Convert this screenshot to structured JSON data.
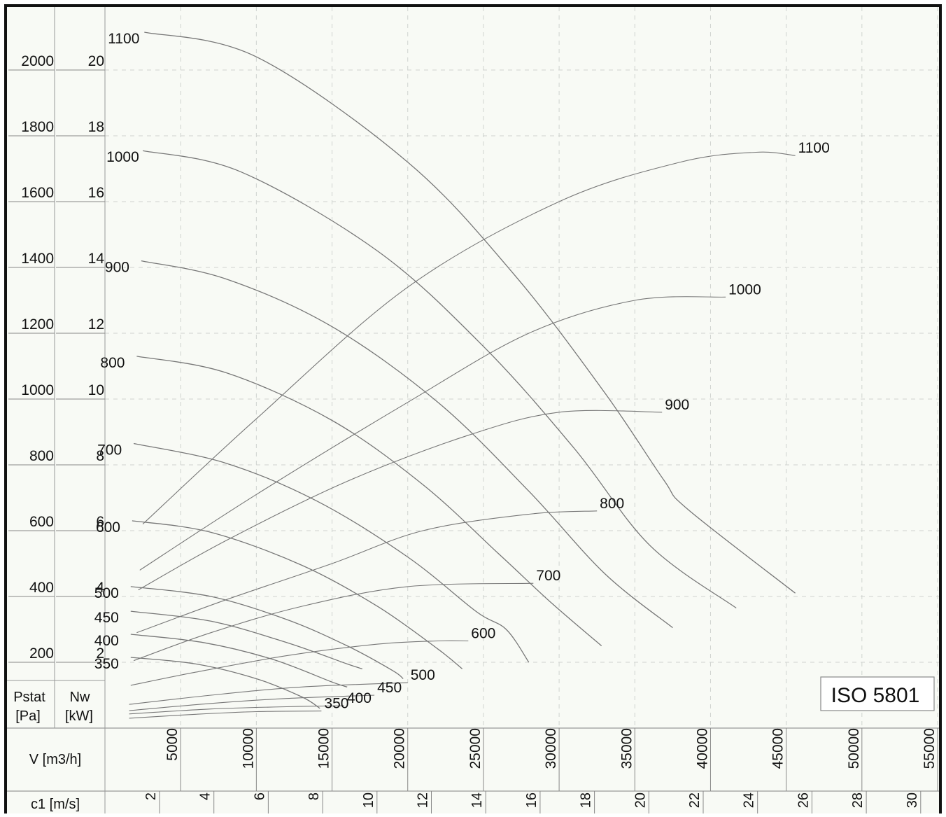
{
  "chart_data": {
    "type": "line",
    "title": "",
    "badge": "ISO 5801",
    "pressure_axis": {
      "label_line1": "Pstat",
      "label_line2": "[Pa]",
      "ticks": [
        200,
        400,
        600,
        800,
        1000,
        1200,
        1400,
        1600,
        1800,
        2000
      ],
      "range": [
        0,
        2100
      ]
    },
    "power_axis": {
      "label_line1": "Nw",
      "label_line2": "[kW]",
      "ticks": [
        2,
        4,
        6,
        8,
        10,
        12,
        14,
        16,
        18,
        20
      ],
      "range": [
        0,
        21
      ]
    },
    "flow_axis": {
      "label": "V [m3/h]",
      "ticks": [
        5000,
        10000,
        15000,
        20000,
        25000,
        30000,
        35000,
        40000,
        45000,
        50000,
        55000
      ],
      "range": [
        0,
        55000
      ]
    },
    "velocity_axis": {
      "label": "c1 [m/s]",
      "ticks": [
        2,
        4,
        6,
        8,
        10,
        12,
        14,
        16,
        18,
        20,
        22,
        24,
        26,
        28,
        30
      ]
    },
    "grid": true,
    "pressure_series": [
      {
        "name": "1100",
        "points": [
          [
            2600,
            2115
          ],
          [
            10000,
            2040
          ],
          [
            20000,
            1720
          ],
          [
            27000,
            1380
          ],
          [
            33000,
            1020
          ],
          [
            36900,
            755
          ],
          [
            38500,
            665
          ],
          [
            45600,
            410
          ]
        ]
      },
      {
        "name": "1000",
        "points": [
          [
            2500,
            1755
          ],
          [
            9000,
            1690
          ],
          [
            18000,
            1450
          ],
          [
            25000,
            1160
          ],
          [
            31000,
            850
          ],
          [
            36000,
            555
          ],
          [
            41700,
            365
          ]
        ]
      },
      {
        "name": "900",
        "points": [
          [
            2400,
            1420
          ],
          [
            8000,
            1365
          ],
          [
            15000,
            1220
          ],
          [
            22000,
            990
          ],
          [
            28000,
            720
          ],
          [
            33000,
            470
          ],
          [
            37500,
            305
          ]
        ]
      },
      {
        "name": "800",
        "points": [
          [
            2100,
            1130
          ],
          [
            8000,
            1080
          ],
          [
            15000,
            935
          ],
          [
            21000,
            740
          ],
          [
            26000,
            530
          ],
          [
            29500,
            380
          ],
          [
            32800,
            250
          ]
        ]
      },
      {
        "name": "700",
        "points": [
          [
            1900,
            865
          ],
          [
            8000,
            805
          ],
          [
            14000,
            690
          ],
          [
            20000,
            520
          ],
          [
            24500,
            355
          ],
          [
            26500,
            300
          ],
          [
            28000,
            200
          ]
        ]
      },
      {
        "name": "600",
        "points": [
          [
            1800,
            630
          ],
          [
            7000,
            595
          ],
          [
            13000,
            495
          ],
          [
            18000,
            370
          ],
          [
            22000,
            240
          ],
          [
            23600,
            180
          ]
        ]
      },
      {
        "name": "500",
        "points": [
          [
            1700,
            430
          ],
          [
            7000,
            400
          ],
          [
            12000,
            330
          ],
          [
            16000,
            250
          ],
          [
            19000,
            175
          ],
          [
            19700,
            150
          ]
        ]
      },
      {
        "name": "450",
        "points": [
          [
            1700,
            355
          ],
          [
            7000,
            325
          ],
          [
            12000,
            260
          ],
          [
            16000,
            195
          ],
          [
            17000,
            180
          ]
        ]
      },
      {
        "name": "400",
        "points": [
          [
            1700,
            285
          ],
          [
            6500,
            260
          ],
          [
            11000,
            210
          ],
          [
            15000,
            140
          ],
          [
            16000,
            125
          ]
        ]
      },
      {
        "name": "350",
        "points": [
          [
            1700,
            215
          ],
          [
            6000,
            195
          ],
          [
            10000,
            150
          ],
          [
            13000,
            95
          ],
          [
            14200,
            60
          ]
        ]
      }
    ],
    "power_series": [
      {
        "name": "1100",
        "points": [
          [
            2500,
            6.2
          ],
          [
            10000,
            9.4
          ],
          [
            20000,
            13.4
          ],
          [
            30000,
            16.0
          ],
          [
            38000,
            17.2
          ],
          [
            43000,
            17.5
          ],
          [
            45600,
            17.4
          ]
        ]
      },
      {
        "name": "1000",
        "points": [
          [
            2300,
            4.8
          ],
          [
            10000,
            7.1
          ],
          [
            20000,
            9.9
          ],
          [
            28000,
            12.0
          ],
          [
            35000,
            13.0
          ],
          [
            41000,
            13.1
          ]
        ]
      },
      {
        "name": "900",
        "points": [
          [
            2200,
            4.2
          ],
          [
            8000,
            5.7
          ],
          [
            16000,
            7.5
          ],
          [
            24000,
            8.9
          ],
          [
            30000,
            9.6
          ],
          [
            36800,
            9.6
          ]
        ]
      },
      {
        "name": "800",
        "points": [
          [
            2100,
            2.9
          ],
          [
            8000,
            3.9
          ],
          [
            15000,
            5.0
          ],
          [
            21000,
            6.0
          ],
          [
            28000,
            6.5
          ],
          [
            32500,
            6.6
          ]
        ]
      },
      {
        "name": "700",
        "points": [
          [
            1900,
            2.05
          ],
          [
            7000,
            2.9
          ],
          [
            13000,
            3.7
          ],
          [
            20000,
            4.3
          ],
          [
            28300,
            4.4
          ]
        ]
      },
      {
        "name": "600",
        "points": [
          [
            1700,
            1.3
          ],
          [
            6000,
            1.7
          ],
          [
            12000,
            2.2
          ],
          [
            18000,
            2.55
          ],
          [
            22000,
            2.65
          ],
          [
            24000,
            2.65
          ]
        ]
      },
      {
        "name": "500",
        "points": [
          [
            1600,
            0.72
          ],
          [
            7000,
            1.0
          ],
          [
            13000,
            1.25
          ],
          [
            20000,
            1.38
          ]
        ]
      },
      {
        "name": "450",
        "points": [
          [
            1600,
            0.53
          ],
          [
            7000,
            0.75
          ],
          [
            12000,
            0.9
          ],
          [
            17800,
            1.0
          ]
        ]
      },
      {
        "name": "400",
        "points": [
          [
            1600,
            0.43
          ],
          [
            7000,
            0.58
          ],
          [
            12000,
            0.65
          ],
          [
            15800,
            0.68
          ]
        ]
      },
      {
        "name": "350",
        "points": [
          [
            1600,
            0.3
          ],
          [
            6000,
            0.42
          ],
          [
            10000,
            0.5
          ],
          [
            14300,
            0.52
          ]
        ]
      }
    ]
  }
}
